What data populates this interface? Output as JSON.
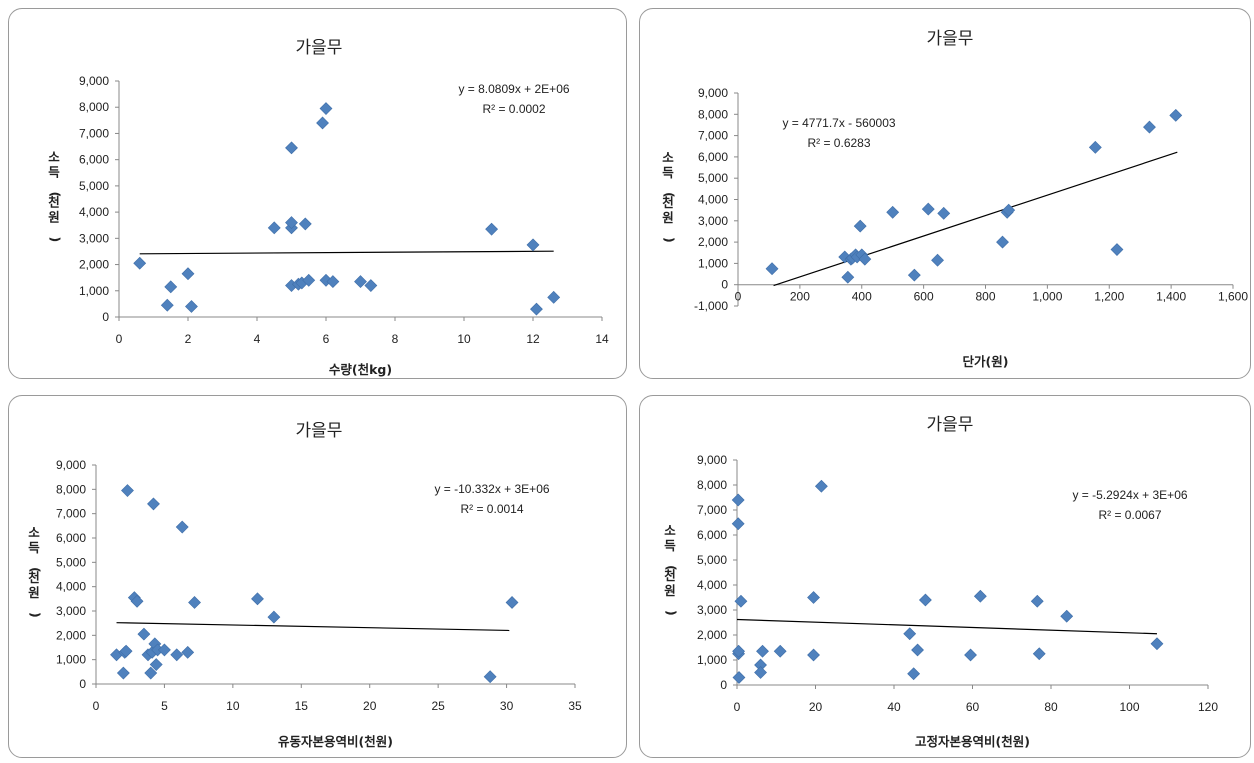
{
  "chart_data": [
    {
      "type": "scatter",
      "title": "가을무",
      "xlabel": "수량(천kg)",
      "ylabel": "소득(천원)",
      "xlim": [
        0,
        14
      ],
      "ylim": [
        0,
        9000
      ],
      "xticks": [
        "0",
        "2",
        "4",
        "6",
        "8",
        "10",
        "12",
        "14"
      ],
      "yticks": [
        "0",
        "1,000",
        "2,000",
        "3,000",
        "4,000",
        "5,000",
        "6,000",
        "7,000",
        "8,000",
        "9,000"
      ],
      "trendline": {
        "equation": "y = 8.0809x + 2E+06",
        "r2": "R² = 0.0002",
        "x": [
          0.6,
          12.6
        ],
        "y": [
          2410,
          2510
        ]
      },
      "points": [
        [
          0.6,
          2050
        ],
        [
          1.4,
          450
        ],
        [
          1.5,
          1150
        ],
        [
          2.0,
          1650
        ],
        [
          2.1,
          400
        ],
        [
          4.5,
          3400
        ],
        [
          5.0,
          3400
        ],
        [
          5.0,
          3600
        ],
        [
          5.0,
          6450
        ],
        [
          5.0,
          1200
        ],
        [
          5.2,
          1250
        ],
        [
          5.3,
          1300
        ],
        [
          5.4,
          3550
        ],
        [
          5.5,
          1400
        ],
        [
          5.9,
          7400
        ],
        [
          6.0,
          7950
        ],
        [
          6.0,
          1400
        ],
        [
          6.2,
          1350
        ],
        [
          7.0,
          1350
        ],
        [
          7.3,
          1200
        ],
        [
          10.8,
          3350
        ],
        [
          12.0,
          2750
        ],
        [
          12.1,
          300
        ],
        [
          12.6,
          750
        ]
      ]
    },
    {
      "type": "scatter",
      "title": "가을무",
      "xlabel": "단가(원)",
      "ylabel": "소득(천원)",
      "xlim": [
        0,
        1600
      ],
      "ylim": [
        -1000,
        9000
      ],
      "xticks": [
        "0",
        "200",
        "400",
        "600",
        "800",
        "1,000",
        "1,200",
        "1,400",
        "1,600"
      ],
      "yticks": [
        "-1,000",
        "0",
        "1,000",
        "2,000",
        "3,000",
        "4,000",
        "5,000",
        "6,000",
        "7,000",
        "8,000",
        "9,000"
      ],
      "trendline": {
        "equation": "y = 4771.7x - 560003",
        "r2": "R² = 0.6283",
        "x": [
          115,
          1420
        ],
        "y": [
          -40,
          6220
        ]
      },
      "points": [
        [
          110,
          750
        ],
        [
          345,
          1300
        ],
        [
          355,
          350
        ],
        [
          365,
          1200
        ],
        [
          370,
          1250
        ],
        [
          380,
          1400
        ],
        [
          385,
          1300
        ],
        [
          395,
          2750
        ],
        [
          400,
          1400
        ],
        [
          410,
          1200
        ],
        [
          500,
          3400
        ],
        [
          570,
          450
        ],
        [
          615,
          3550
        ],
        [
          645,
          1150
        ],
        [
          665,
          3350
        ],
        [
          855,
          2000
        ],
        [
          870,
          3400
        ],
        [
          875,
          3500
        ],
        [
          1155,
          6450
        ],
        [
          1225,
          1650
        ],
        [
          1330,
          7400
        ],
        [
          1415,
          7950
        ]
      ]
    },
    {
      "type": "scatter",
      "title": "가을무",
      "xlabel": "유동자본용역비(천원)",
      "ylabel": "소득(천원)",
      "xlim": [
        0,
        35
      ],
      "ylim": [
        0,
        9000
      ],
      "xticks": [
        "0",
        "5",
        "10",
        "15",
        "20",
        "25",
        "30",
        "35"
      ],
      "yticks": [
        "0",
        "1,000",
        "2,000",
        "3,000",
        "4,000",
        "5,000",
        "6,000",
        "7,000",
        "8,000",
        "9,000"
      ],
      "trendline": {
        "equation": "y = -10.332x + 3E+06",
        "r2": "R² = 0.0014",
        "x": [
          1.5,
          30.2
        ],
        "y": [
          2520,
          2200
        ]
      },
      "points": [
        [
          1.5,
          1200
        ],
        [
          2.0,
          450
        ],
        [
          2.1,
          1300
        ],
        [
          2.2,
          1350
        ],
        [
          2.3,
          7950
        ],
        [
          2.8,
          3550
        ],
        [
          3.0,
          3400
        ],
        [
          3.5,
          2050
        ],
        [
          3.8,
          1200
        ],
        [
          4.0,
          450
        ],
        [
          4.1,
          1300
        ],
        [
          4.2,
          7400
        ],
        [
          4.3,
          1650
        ],
        [
          4.4,
          800
        ],
        [
          4.5,
          1400
        ],
        [
          5.0,
          1400
        ],
        [
          5.9,
          1200
        ],
        [
          6.3,
          6450
        ],
        [
          6.7,
          1300
        ],
        [
          7.2,
          3350
        ],
        [
          11.8,
          3500
        ],
        [
          13.0,
          2750
        ],
        [
          28.8,
          300
        ],
        [
          30.4,
          3350
        ]
      ]
    },
    {
      "type": "scatter",
      "title": "가을무",
      "xlabel": "고정자본용역비(천원)",
      "ylabel": "소득(천원)",
      "xlim": [
        0,
        120
      ],
      "ylim": [
        0,
        9000
      ],
      "xticks": [
        "0",
        "20",
        "40",
        "60",
        "80",
        "100",
        "120"
      ],
      "yticks": [
        "0",
        "1,000",
        "2,000",
        "3,000",
        "4,000",
        "5,000",
        "6,000",
        "7,000",
        "8,000",
        "9,000"
      ],
      "trendline": {
        "equation": "y = -5.2924x + 3E+06",
        "r2": "R² = 0.0067",
        "x": [
          0,
          107
        ],
        "y": [
          2620,
          2050
        ]
      },
      "points": [
        [
          0.3,
          7400
        ],
        [
          0.3,
          6450
        ],
        [
          0.4,
          1250
        ],
        [
          0.4,
          1350
        ],
        [
          0.5,
          300
        ],
        [
          1.0,
          3350
        ],
        [
          6.0,
          800
        ],
        [
          6.0,
          500
        ],
        [
          6.5,
          1350
        ],
        [
          11.0,
          1350
        ],
        [
          19.5,
          3500
        ],
        [
          19.5,
          1200
        ],
        [
          21.5,
          7950
        ],
        [
          44.0,
          2050
        ],
        [
          45.0,
          450
        ],
        [
          46.0,
          1400
        ],
        [
          48.0,
          3400
        ],
        [
          59.5,
          1200
        ],
        [
          62.0,
          3550
        ],
        [
          76.5,
          3350
        ],
        [
          77.0,
          1250
        ],
        [
          84.0,
          2750
        ],
        [
          107.0,
          1650
        ]
      ]
    }
  ]
}
